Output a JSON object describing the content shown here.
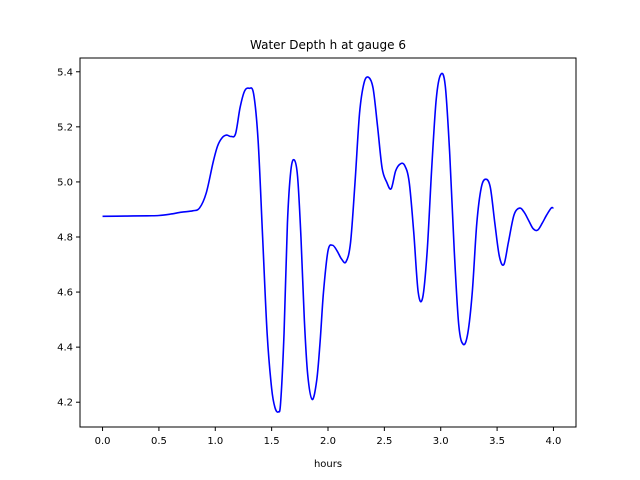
{
  "chart_data": {
    "type": "line",
    "title": "Water Depth h at gauge 6",
    "xlabel": "hours",
    "ylabel": "",
    "xlim": [
      -0.2,
      4.2
    ],
    "ylim": [
      4.11,
      5.45
    ],
    "grid": false,
    "x_ticks": [
      0.0,
      0.5,
      1.0,
      1.5,
      2.0,
      2.5,
      3.0,
      3.5,
      4.0
    ],
    "x_tick_labels": [
      "0.0",
      "0.5",
      "1.0",
      "1.5",
      "2.0",
      "2.5",
      "3.0",
      "3.5",
      "4.0"
    ],
    "y_ticks": [
      4.2,
      4.4,
      4.6,
      4.8,
      5.0,
      5.2,
      5.4
    ],
    "y_tick_labels": [
      "4.2",
      "4.4",
      "4.6",
      "4.8",
      "5.0",
      "5.2",
      "5.4"
    ],
    "series": [
      {
        "color": "#0000ff",
        "x": [
          0.0,
          0.2,
          0.4,
          0.5,
          0.6,
          0.7,
          0.8,
          0.86,
          0.92,
          0.98,
          1.02,
          1.06,
          1.1,
          1.14,
          1.18,
          1.22,
          1.26,
          1.3,
          1.34,
          1.38,
          1.42,
          1.46,
          1.5,
          1.53,
          1.56,
          1.58,
          1.61,
          1.64,
          1.67,
          1.7,
          1.73,
          1.76,
          1.79,
          1.82,
          1.86,
          1.9,
          1.93,
          1.96,
          2.0,
          2.04,
          2.08,
          2.12,
          2.16,
          2.2,
          2.24,
          2.28,
          2.32,
          2.36,
          2.4,
          2.44,
          2.48,
          2.52,
          2.56,
          2.6,
          2.64,
          2.68,
          2.72,
          2.76,
          2.8,
          2.84,
          2.88,
          2.92,
          2.96,
          3.0,
          3.04,
          3.08,
          3.12,
          3.16,
          3.2,
          3.24,
          3.28,
          3.32,
          3.36,
          3.4,
          3.44,
          3.48,
          3.52,
          3.56,
          3.6,
          3.65,
          3.7,
          3.74,
          3.78,
          3.82,
          3.86,
          3.9,
          3.94,
          3.98,
          4.0
        ],
        "values": [
          4.875,
          4.876,
          4.877,
          4.878,
          4.883,
          4.89,
          4.895,
          4.905,
          4.96,
          5.07,
          5.13,
          5.16,
          5.17,
          5.165,
          5.175,
          5.27,
          5.33,
          5.34,
          5.32,
          5.15,
          4.8,
          4.45,
          4.25,
          4.18,
          4.165,
          4.2,
          4.45,
          4.85,
          5.04,
          5.08,
          5.02,
          4.8,
          4.5,
          4.3,
          4.21,
          4.28,
          4.42,
          4.6,
          4.75,
          4.77,
          4.75,
          4.72,
          4.71,
          4.78,
          5.0,
          5.25,
          5.36,
          5.38,
          5.34,
          5.2,
          5.05,
          5.0,
          4.975,
          5.04,
          5.065,
          5.06,
          5.0,
          4.82,
          4.6,
          4.58,
          4.75,
          5.05,
          5.3,
          5.39,
          5.35,
          5.1,
          4.75,
          4.48,
          4.41,
          4.45,
          4.6,
          4.85,
          4.98,
          5.01,
          4.98,
          4.85,
          4.73,
          4.7,
          4.78,
          4.88,
          4.905,
          4.89,
          4.86,
          4.83,
          4.825,
          4.85,
          4.88,
          4.905,
          4.905
        ]
      }
    ]
  }
}
